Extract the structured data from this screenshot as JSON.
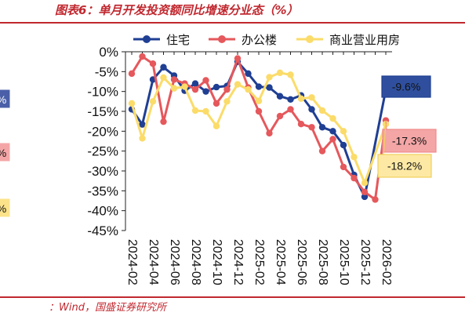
{
  "title": "图表6：单月开发投资额同比增速分业态（%）",
  "source": "：Wind，国盛证券研究所",
  "left_edge_fragments": [
    {
      "text": "%",
      "color": "#4a5fa8",
      "fg": "#ffffff"
    },
    {
      "text": "%",
      "color": "#f4a6a6",
      "fg": "#111111"
    },
    {
      "text": "%",
      "color": "#fce38a",
      "fg": "#111111"
    }
  ],
  "chart_data": {
    "type": "line",
    "ylim": [
      -45,
      0
    ],
    "ytick_step": 5,
    "ytick_format": "percent",
    "x": [
      "2024-02",
      "2024-03",
      "2024-04",
      "2024-05",
      "2024-06",
      "2024-07",
      "2024-08",
      "2024-09",
      "2024-10",
      "2024-11",
      "2024-12",
      "2025-01",
      "2025-02",
      "2025-03",
      "2025-04",
      "2025-05",
      "2025-06",
      "2025-07",
      "2025-08",
      "2025-09",
      "2025-10",
      "2025-11",
      "2025-12",
      "2026-01",
      "2026-02"
    ],
    "xtick_labels": [
      "2024-02",
      "2024-04",
      "2024-06",
      "2024-08",
      "2024-10",
      "2024-12",
      "2025-02",
      "2025-04",
      "2025-06",
      "2025-08",
      "2025-10",
      "2025-12",
      "2026-02"
    ],
    "legend_position": "top",
    "series": [
      {
        "name": "住宅",
        "color": "#1f3f93",
        "values": [
          -14.5,
          -18.3,
          -7.0,
          -3.9,
          -6.0,
          -9.8,
          -8.0,
          -10.0,
          -8.9,
          -8.6,
          -2.5,
          -5.5,
          -8.8,
          -9.0,
          -11.2,
          -12.0,
          -11.0,
          -14.5,
          -19.0,
          -20.0,
          -23.5,
          -31.0,
          -36.5,
          null,
          -9.6
        ]
      },
      {
        "name": "办公楼",
        "color": "#e5585c",
        "values": [
          -5.5,
          -1.2,
          -3.0,
          -17.6,
          -7.0,
          -8.0,
          -9.5,
          -7.2,
          -13.0,
          -9.5,
          -1.7,
          -9.0,
          -15.0,
          -20.5,
          -16.2,
          -14.5,
          -18.2,
          -19.0,
          -25.0,
          -22.0,
          -29.0,
          -31.8,
          -35.3,
          -37.2,
          -17.3
        ]
      },
      {
        "name": "商业营业用房",
        "color": "#fbdc6a",
        "values": [
          -13.0,
          -21.8,
          -12.5,
          -6.5,
          -9.2,
          -8.8,
          -14.8,
          -15.0,
          -18.7,
          -12.5,
          -8.2,
          -9.5,
          -12.4,
          -6.4,
          -5.3,
          -5.8,
          -11.8,
          -11.5,
          -14.8,
          -16.8,
          -20.0,
          -26.5,
          -33.0,
          null,
          -18.2
        ]
      }
    ],
    "end_labels": [
      {
        "series": "住宅",
        "text": "-9.6%",
        "fill": "#2f4f9e",
        "border": "#1f3f93",
        "text_color": "#ffffff"
      },
      {
        "series": "办公楼",
        "text": "-17.3%",
        "fill": "#f4a6a6",
        "border": "#f08a8a",
        "text_color": "#111111"
      },
      {
        "series": "商业营业用房",
        "text": "-18.2%",
        "fill": "#fde9a4",
        "border": "#f0cf5a",
        "text_color": "#111111"
      }
    ]
  }
}
